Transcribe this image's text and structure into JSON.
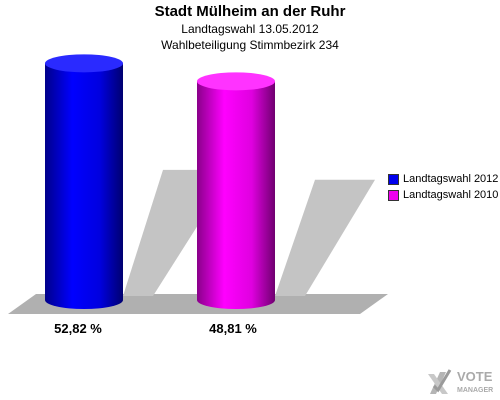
{
  "header": {
    "title": "Stadt Mülheim an der Ruhr",
    "subtitle1": "Landtagswahl 13.05.2012",
    "subtitle2": "Wahlbeteiligung Stimmbezirk 234"
  },
  "chart_data": {
    "type": "bar",
    "title": "Stadt Mülheim an der Ruhr",
    "subtitle": "Landtagswahl 13.05.2012 · Wahlbeteiligung Stimmbezirk 234",
    "categories": [
      "Landtagswahl 2012",
      "Landtagswahl 2010"
    ],
    "series": [
      {
        "name": "Landtagswahl 2012",
        "value": 52.82,
        "label": "52,82 %",
        "color": "#0000ee"
      },
      {
        "name": "Landtagswahl 2010",
        "value": 48.81,
        "label": "48,81 %",
        "color": "#ee00ee"
      }
    ],
    "unit": "%",
    "ylim": [
      0,
      60
    ],
    "grid": false,
    "legend": "right"
  },
  "legend": {
    "items": [
      {
        "label": "Landtagswahl 2012",
        "color": "#0000ee"
      },
      {
        "label": "Landtagswahl 2010",
        "color": "#ee00ee"
      }
    ]
  },
  "logo": {
    "line1": "VOTE",
    "line2": "MANAGER",
    "icon": "x-check-logo-icon"
  }
}
